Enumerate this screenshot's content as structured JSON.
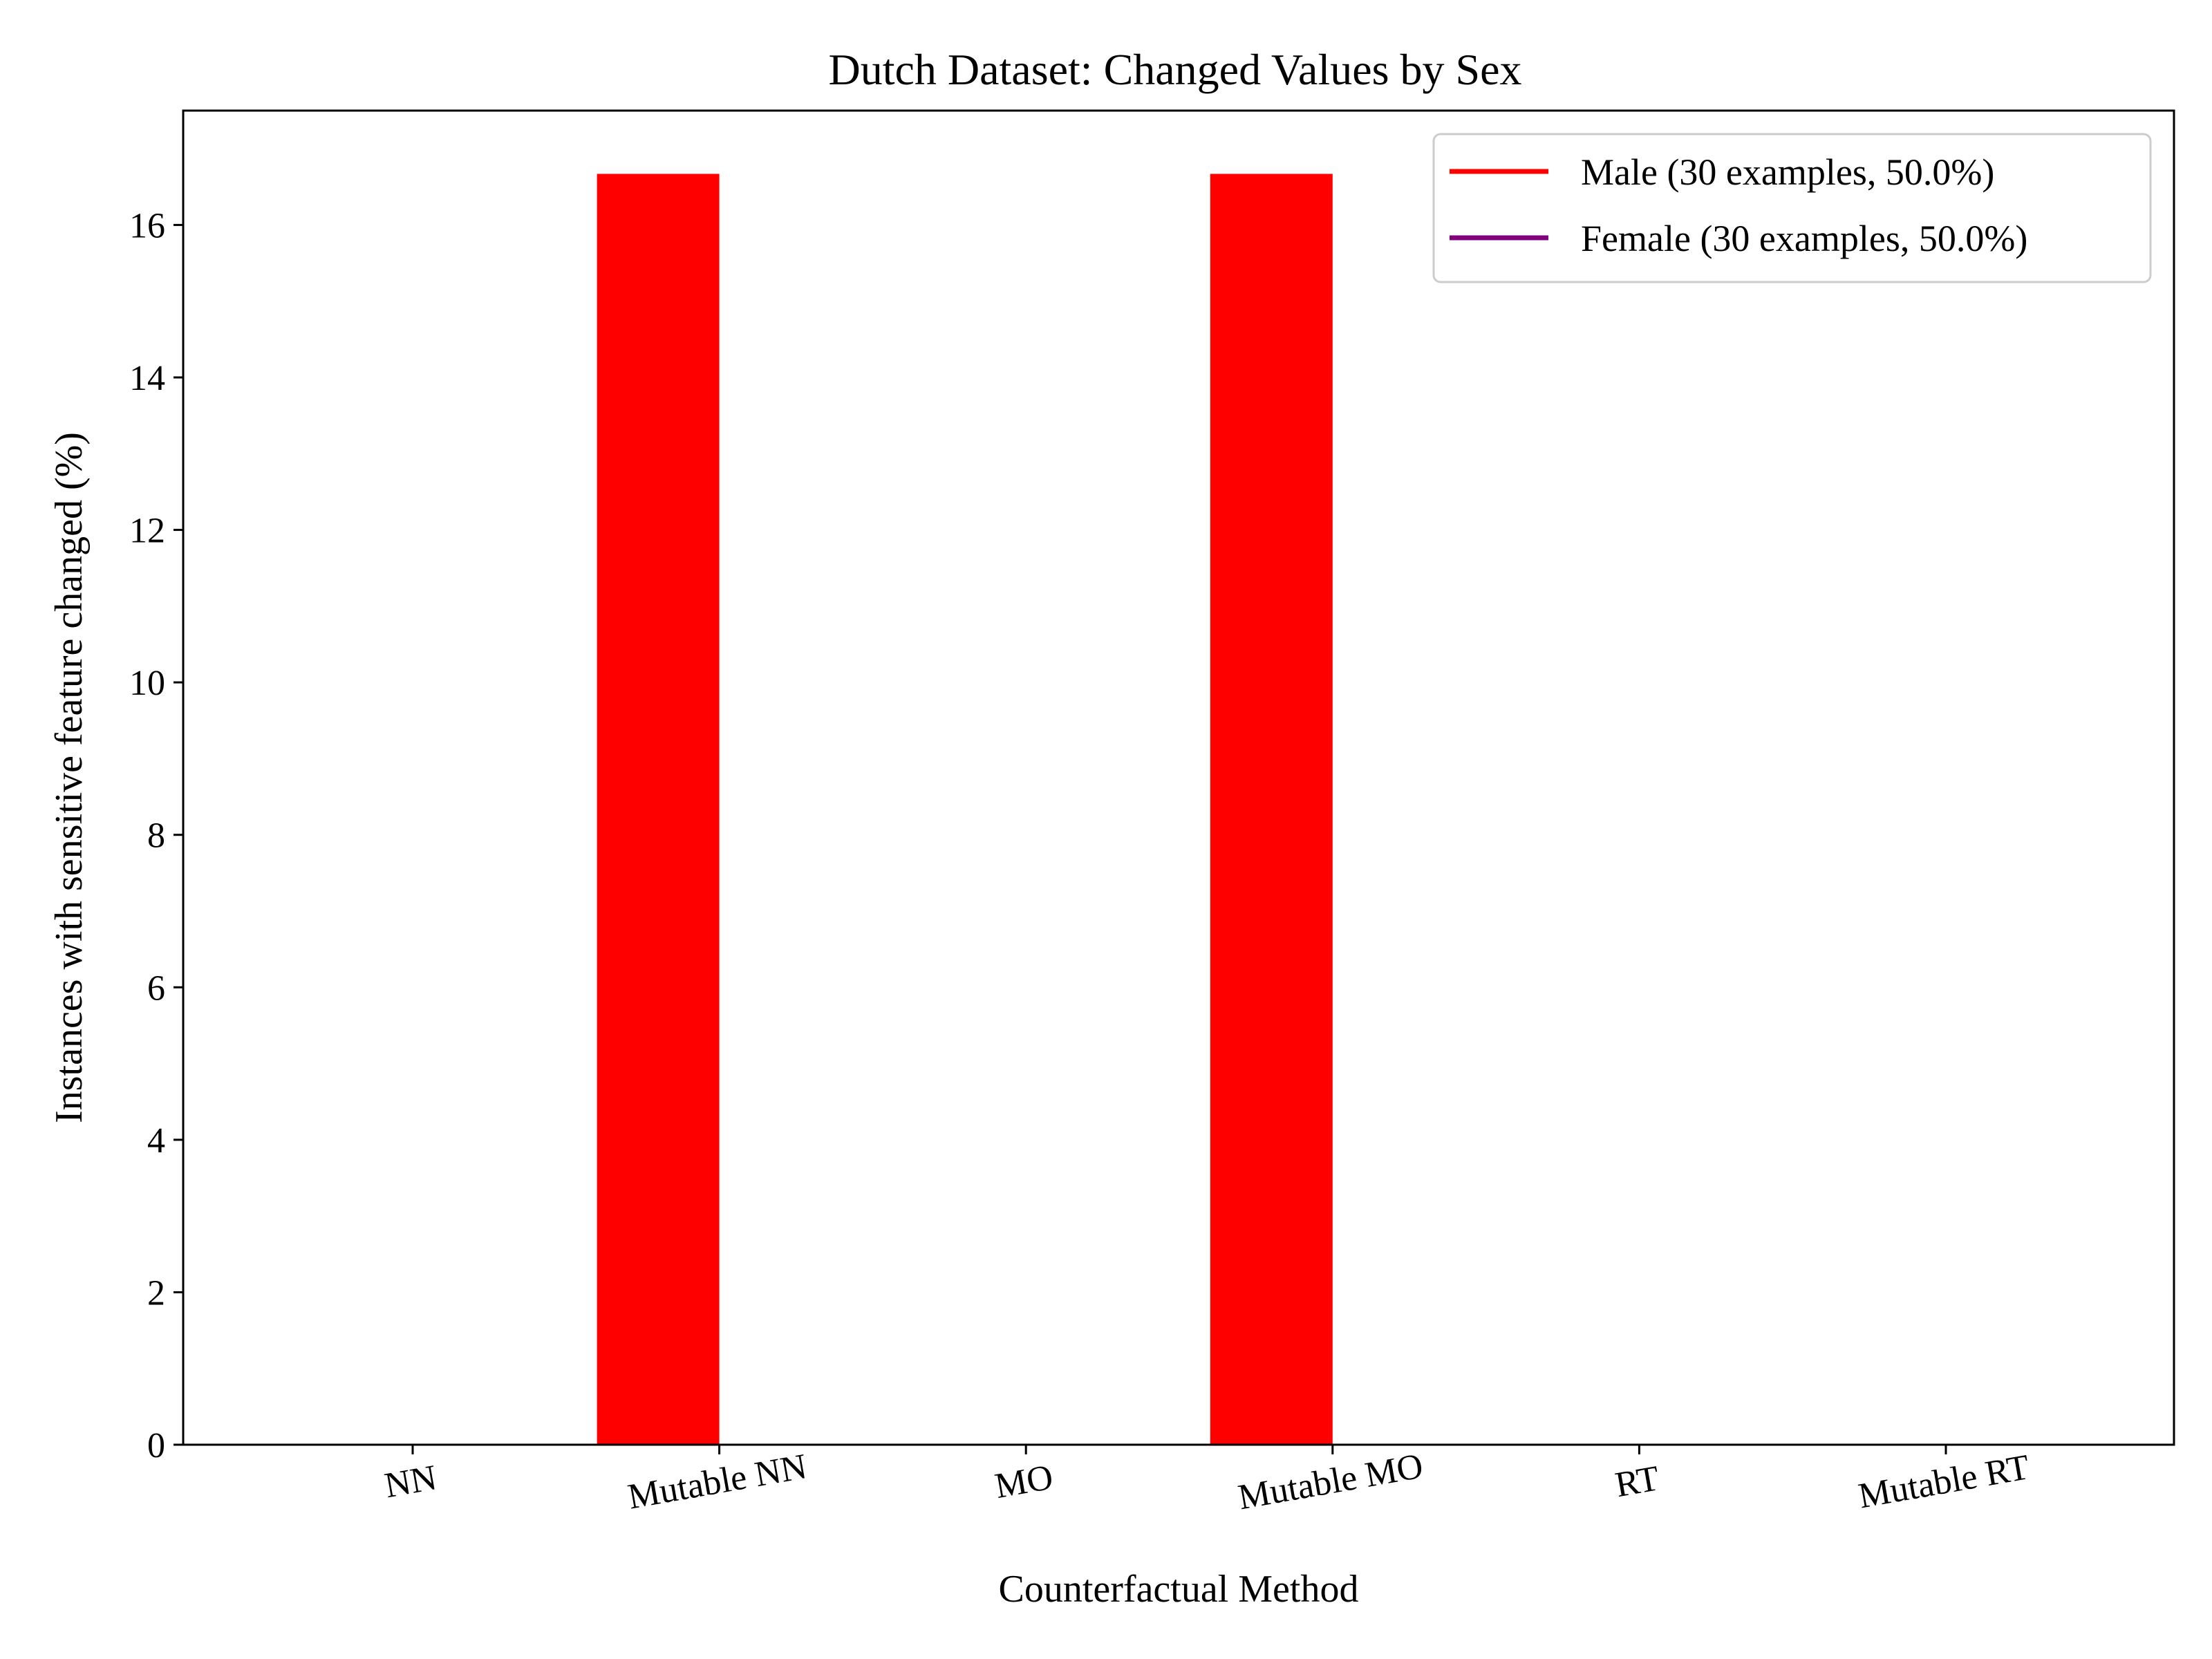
{
  "chart_data": {
    "type": "bar",
    "title": "Dutch Dataset: Changed Values by Sex",
    "xlabel": "Counterfactual Method",
    "ylabel": "Instances with sensitive feature changed (%)",
    "categories": [
      "NN",
      "Mutable NN",
      "MO",
      "Mutable MO",
      "RT",
      "Mutable RT"
    ],
    "series": [
      {
        "name": "Male (30 examples, 50.0%)",
        "color": "#ff0000",
        "values": [
          0,
          16.67,
          0,
          16.67,
          0,
          0
        ]
      },
      {
        "name": "Female (30 examples, 50.0%)",
        "color": "#800080",
        "values": [
          0,
          0,
          0,
          0,
          0,
          0
        ]
      }
    ],
    "ylim": [
      0,
      17.5
    ],
    "yticks": [
      0,
      2,
      4,
      6,
      8,
      10,
      12,
      14,
      16
    ],
    "grid": false,
    "legend_position": "top-right"
  }
}
